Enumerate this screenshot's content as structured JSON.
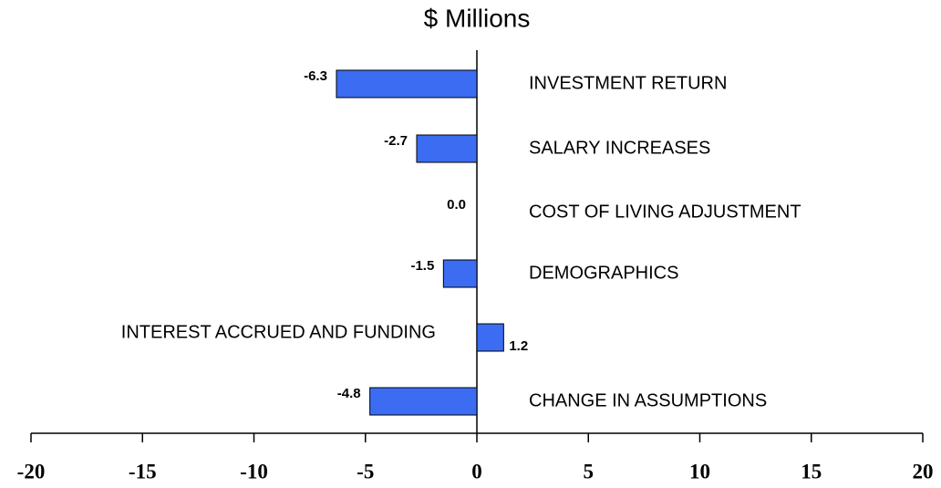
{
  "chart_data": {
    "type": "bar",
    "orientation": "horizontal",
    "title": "$ Millions",
    "categories": [
      "INVESTMENT RETURN",
      "SALARY INCREASES",
      "COST OF  LIVING ADJUSTMENT",
      "DEMOGRAPHICS",
      "INTEREST ACCRUED AND FUNDING",
      "CHANGE IN ASSUMPTIONS"
    ],
    "values": [
      -6.3,
      -2.7,
      0,
      -1.5,
      1.2,
      -4.8
    ],
    "value_labels": [
      "-6.3",
      "-2.7",
      "0.0",
      "-1.5",
      "1.2",
      "-4.8"
    ],
    "color": "#3b6cf2",
    "xlim": [
      -20,
      20
    ],
    "xticks": [
      -20,
      -15,
      -10,
      -5,
      0,
      5,
      10,
      15,
      20
    ]
  }
}
